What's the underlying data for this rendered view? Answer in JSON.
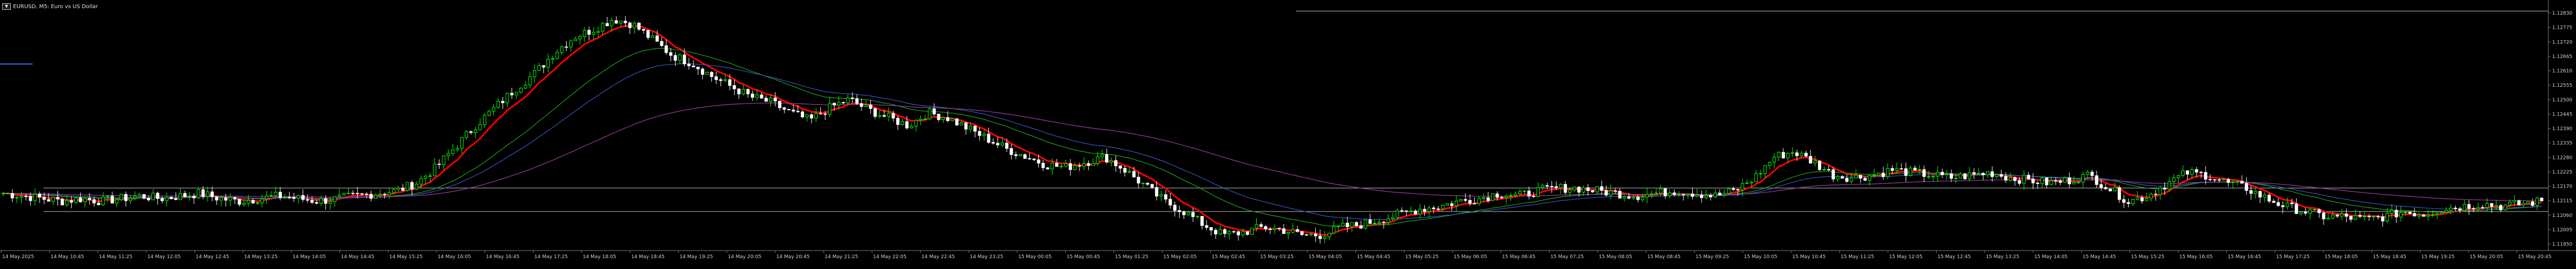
{
  "header": {
    "icon": "chart-window-icon",
    "icon_glyph": "▼",
    "title": "EURUSD, M5:  Euro vs US Dollar"
  },
  "colors": {
    "background": "#000000",
    "candle_up": "#00ff00",
    "candle_down": "#ffffff",
    "ma_fast": "#ff0000",
    "ma_slow_green": "#1fa51f",
    "ma_blue": "#3b57c6",
    "ma_purple": "#9b3fa0",
    "level_line": "#ffffff",
    "axis_text": "#d0d0d0"
  },
  "chart_data": {
    "type": "candlestick",
    "symbol": "EURUSD",
    "timeframe": "M5",
    "y_ticks": [
      "1.12830",
      "1.12775",
      "1.12720",
      "1.12665",
      "1.12610",
      "1.12555",
      "1.12500",
      "1.12445",
      "1.12390",
      "1.12335",
      "1.12280",
      "1.12225",
      "1.12170",
      "1.12115",
      "1.12060",
      "1.12005",
      "1.11950"
    ],
    "ylim": [
      1.119,
      1.1285
    ],
    "x_ticks": [
      "14 May 2025",
      "14 May 10:45",
      "14 May 11:25",
      "14 May 12:05",
      "14 May 12:45",
      "14 May 13:25",
      "14 May 14:05",
      "14 May 14:45",
      "14 May 15:25",
      "14 May 16:05",
      "14 May 16:45",
      "14 May 17:25",
      "14 May 18:05",
      "14 May 18:45",
      "14 May 19:25",
      "14 May 20:05",
      "14 May 20:45",
      "14 May 21:25",
      "14 May 22:05",
      "14 May 22:45",
      "14 May 23:25",
      "15 May 00:05",
      "15 May 00:45",
      "15 May 01:25",
      "15 May 02:05",
      "15 May 02:45",
      "15 May 03:25",
      "15 May 04:05",
      "15 May 04:45",
      "15 May 05:25",
      "15 May 06:05",
      "15 May 06:45",
      "15 May 07:25",
      "15 May 08:05",
      "15 May 08:45",
      "15 May 09:25",
      "15 May 10:05",
      "15 May 10:45",
      "15 May 11:25",
      "15 May 12:05",
      "15 May 12:45",
      "15 May 13:25",
      "15 May 14:05",
      "15 May 14:45",
      "15 May 15:25",
      "15 May 16:05",
      "15 May 16:45",
      "15 May 17:25",
      "15 May 18:05",
      "15 May 18:45",
      "15 May 19:25",
      "15 May 20:05",
      "15 May 20:45"
    ],
    "close_path": [
      1.1212,
      1.1211,
      1.121,
      1.1209,
      1.121,
      1.1209,
      1.121,
      1.1211,
      1.121,
      1.1211,
      1.1212,
      1.121,
      1.1209,
      1.121,
      1.1211,
      1.121,
      1.1209,
      1.121,
      1.1211,
      1.1212,
      1.1213,
      1.1216,
      1.1222,
      1.123,
      1.1238,
      1.1245,
      1.1252,
      1.1258,
      1.1266,
      1.1272,
      1.1275,
      1.1279,
      1.1277,
      1.1271,
      1.1265,
      1.1262,
      1.1257,
      1.1253,
      1.1249,
      1.1247,
      1.1243,
      1.124,
      1.1245,
      1.1248,
      1.1244,
      1.1241,
      1.1238,
      1.1243,
      1.1241,
      1.1237,
      1.1233,
      1.1229,
      1.1226,
      1.1223,
      1.1222,
      1.1224,
      1.1226,
      1.1221,
      1.1215,
      1.1209,
      1.1205,
      1.12,
      1.1196,
      1.1197,
      1.1199,
      1.1198,
      1.1196,
      1.1196,
      1.1199,
      1.12,
      1.1202,
      1.1204,
      1.1206,
      1.1207,
      1.1209,
      1.121,
      1.1212,
      1.1211,
      1.1213,
      1.1214,
      1.1214,
      1.1213,
      1.1212,
      1.1211,
      1.1212,
      1.1213,
      1.1212,
      1.1211,
      1.1213,
      1.1218,
      1.1226,
      1.1228,
      1.1224,
      1.1219,
      1.1218,
      1.1219,
      1.1221,
      1.122,
      1.1219,
      1.1218,
      1.1219,
      1.122,
      1.1218,
      1.1217,
      1.1216,
      1.1217,
      1.1219,
      1.1214,
      1.1209,
      1.1211,
      1.1216,
      1.122,
      1.1219,
      1.1216,
      1.1214,
      1.121,
      1.1207,
      1.1205,
      1.1203,
      1.1203,
      1.1202,
      1.1203,
      1.1205,
      1.1204,
      1.1206,
      1.1207,
      1.1208,
      1.1207,
      1.1208,
      1.1209
    ],
    "series": [
      {
        "style": "ma_fast"
      },
      {
        "style": "ma_slow_green"
      },
      {
        "style": "ma_blue"
      },
      {
        "style": "ma_purple"
      }
    ],
    "horizontal_levels": [
      1.1214,
      1.1205
    ],
    "top_level": 1.1282,
    "grid": false
  }
}
